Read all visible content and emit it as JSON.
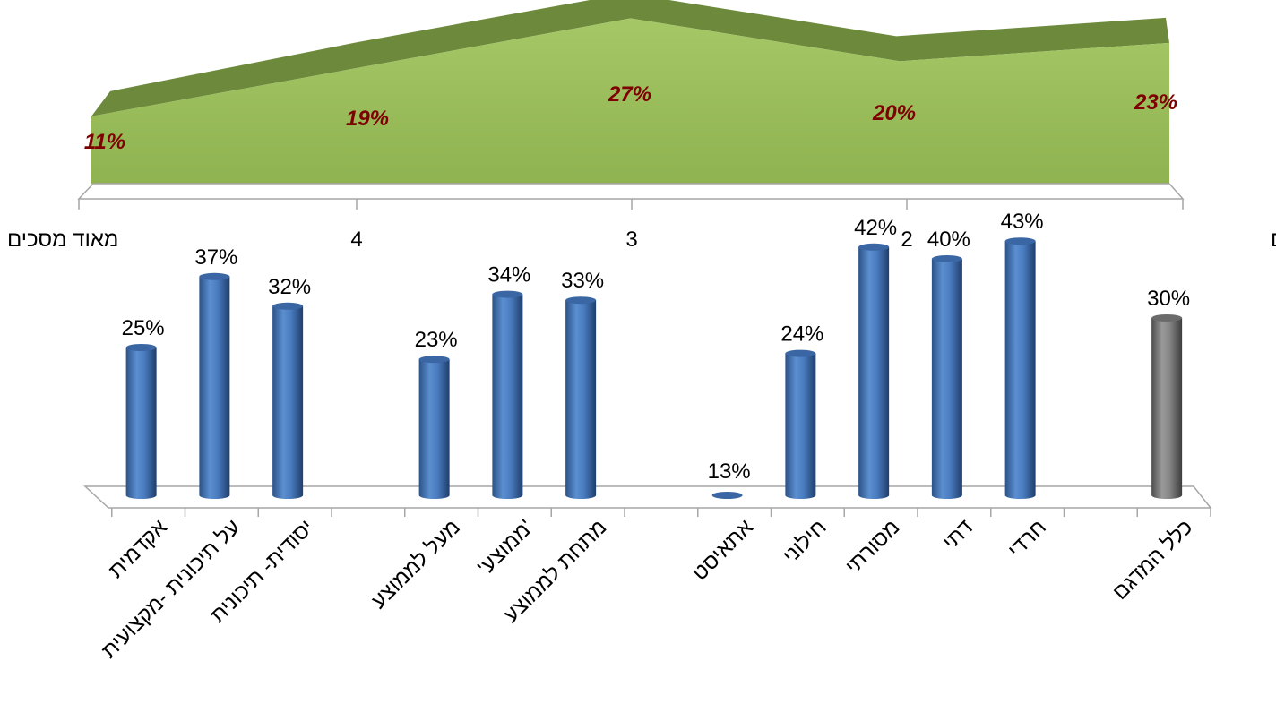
{
  "chart_data": [
    {
      "type": "area",
      "x": [
        "ממש לא-מסכים",
        "2",
        "3",
        "4",
        "מאוד מסכים"
      ],
      "values": [
        23,
        20,
        27,
        19,
        11
      ],
      "data_labels": [
        "23%",
        "20%",
        "27%",
        "19%",
        "11%"
      ],
      "x_direction": "right-to-left",
      "ylim": [
        0,
        30
      ],
      "grid": false,
      "colors": {
        "front": "#9bbb59",
        "top": "#6d8a3c"
      }
    },
    {
      "type": "bar",
      "categories": [
        "כלל המדגם",
        "חרדי",
        "דתי",
        "מסורתי",
        "חילוני",
        "אתאיסט",
        "מתחת לממוצע",
        "'ממוצע'",
        "מעל לממוצע",
        "יסודית- תיכונית",
        "על תיכונית -מקצועית",
        "אקדמית"
      ],
      "values": [
        30,
        43,
        40,
        42,
        24,
        13,
        33,
        34,
        23,
        32,
        37,
        25
      ],
      "data_labels": [
        "30%",
        "43%",
        "40%",
        "42%",
        "24%",
        "13%",
        "33%",
        "34%",
        "23%",
        "32%",
        "37%",
        "25%"
      ],
      "x_direction": "right-to-left",
      "grid": false,
      "colors": {
        "highlight": "#7f7f7f",
        "default": "#4f81bd"
      }
    }
  ]
}
